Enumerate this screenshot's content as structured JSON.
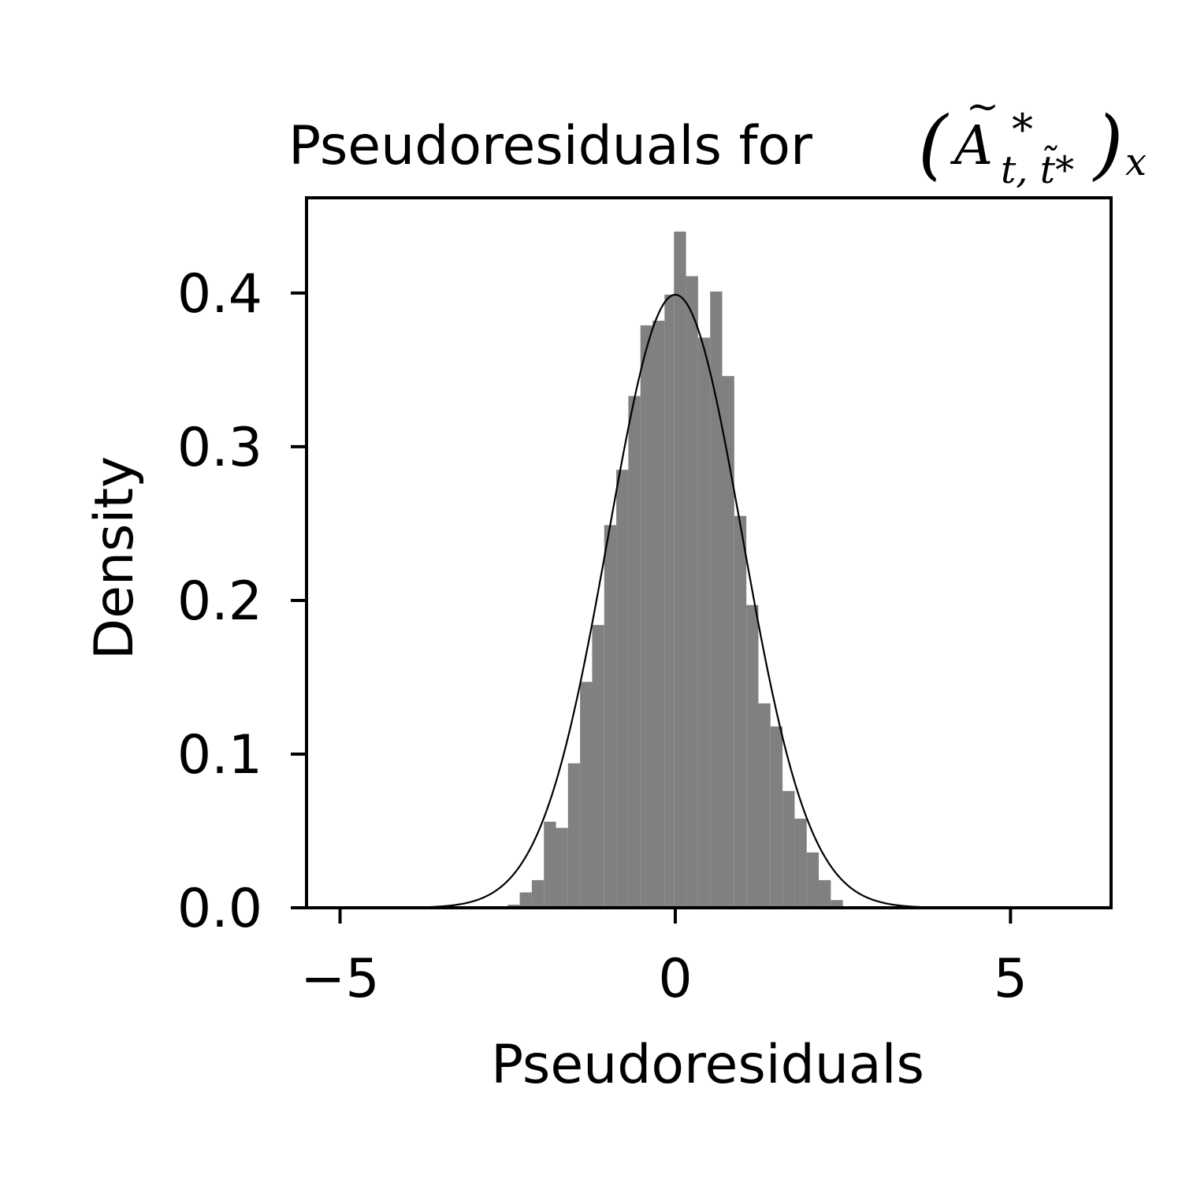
{
  "chart_data": {
    "type": "bar",
    "title": "Pseudoresiduals for",
    "title_math": {
      "symbol": "A",
      "superscript": "*",
      "subscript": "t, t̃*",
      "outer_subscript": "x"
    },
    "xlabel": "Pseudoresiduals",
    "ylabel": "Density",
    "xlim": [
      -5.5,
      6.5
    ],
    "ylim": [
      0,
      0.462
    ],
    "x_ticks": [
      -5,
      0,
      5
    ],
    "x_tick_labels": [
      "−5",
      "0",
      "5"
    ],
    "y_ticks": [
      0.0,
      0.1,
      0.2,
      0.3,
      0.4
    ],
    "y_tick_labels": [
      "0.0",
      "0.1",
      "0.2",
      "0.3",
      "0.4"
    ],
    "grid": false,
    "histogram": {
      "bin_edges": [
        -2.5,
        -2.32,
        -2.14,
        -1.96,
        -1.78,
        -1.6,
        -1.42,
        -1.24,
        -1.06,
        -0.88,
        -0.7,
        -0.52,
        -0.34,
        -0.16,
        -0.02,
        0.16,
        0.34,
        0.52,
        0.7,
        0.88,
        1.06,
        1.24,
        1.42,
        1.6,
        1.78,
        1.96,
        2.14,
        2.32,
        2.5
      ],
      "density": [
        0.002,
        0.01,
        0.018,
        0.056,
        0.052,
        0.094,
        0.147,
        0.184,
        0.249,
        0.285,
        0.333,
        0.379,
        0.382,
        0.399,
        0.44,
        0.411,
        0.371,
        0.401,
        0.346,
        0.255,
        0.197,
        0.133,
        0.118,
        0.076,
        0.058,
        0.036,
        0.018,
        0.005
      ],
      "color": "#808080"
    },
    "curve": {
      "type": "standard-normal-pdf",
      "mean": 0,
      "std": 1,
      "color": "#000000"
    }
  }
}
